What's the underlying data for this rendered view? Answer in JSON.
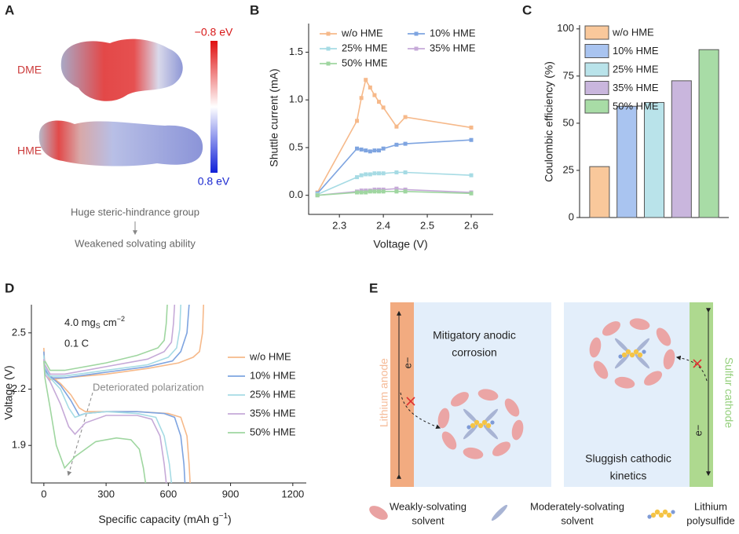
{
  "panel_a": {
    "label": "A",
    "molecules": [
      "DME",
      "HME"
    ],
    "colorbar": [
      "−0.8 eV",
      "0.8 eV"
    ],
    "notes": [
      "Huge steric-hindrance group",
      "Weakened solvating ability"
    ]
  },
  "chart_data": [
    {
      "type": "line",
      "panel": "B",
      "markers": true,
      "legend": "top",
      "xlabel": "Voltage (V)",
      "ylabel": "Shuttle current (mA)",
      "x": [
        2.25,
        2.34,
        2.35,
        2.36,
        2.37,
        2.38,
        2.39,
        2.4,
        2.43,
        2.45,
        2.6
      ],
      "xlim": [
        2.23,
        2.65
      ],
      "xticks": [
        2.3,
        2.4,
        2.5,
        2.6
      ],
      "ylim": [
        -0.2,
        1.8
      ],
      "yticks": [
        {
          "value": 0,
          "label": "0.0"
        },
        0.5,
        {
          "value": 1,
          "label": "1.0"
        },
        1.5
      ],
      "series": [
        {
          "name": "w/o HME",
          "color": "#f6b98a",
          "values": [
            0.03,
            0.78,
            1.02,
            1.21,
            1.13,
            1.05,
            0.98,
            0.92,
            0.72,
            0.82,
            0.71
          ]
        },
        {
          "name": "10% HME",
          "color": "#7ea4e0",
          "values": [
            0.02,
            0.49,
            0.48,
            0.47,
            0.46,
            0.47,
            0.47,
            0.49,
            0.53,
            0.54,
            0.58
          ]
        },
        {
          "name": "25% HME",
          "color": "#a6dbe4",
          "values": [
            0.01,
            0.19,
            0.21,
            0.22,
            0.22,
            0.23,
            0.23,
            0.23,
            0.24,
            0.24,
            0.21
          ]
        },
        {
          "name": "35% HME",
          "color": "#c6aad8",
          "values": [
            0.0,
            0.04,
            0.05,
            0.05,
            0.05,
            0.06,
            0.06,
            0.06,
            0.07,
            0.06,
            0.03
          ]
        },
        {
          "name": "50% HME",
          "color": "#9fd6a0",
          "values": [
            0.0,
            0.03,
            0.03,
            0.03,
            0.04,
            0.04,
            0.04,
            0.04,
            0.04,
            0.04,
            0.02
          ]
        }
      ]
    },
    {
      "type": "bar",
      "panel": "C",
      "ylabel": "Coulombic efficiency  (%)",
      "categories": [
        "w/o HME",
        "10% HME",
        "25% HME",
        "35% HME",
        "50% HME"
      ],
      "values": [
        27,
        59,
        61,
        72.5,
        89
      ],
      "colors": [
        "#f9c89b",
        "#a9c4f0",
        "#b9e3ea",
        "#c9b6dd",
        "#a8dca6"
      ],
      "ylim": [
        0,
        102
      ],
      "yticks": [
        0,
        25,
        50,
        75,
        100
      ]
    },
    {
      "type": "line",
      "panel": "D",
      "markers": false,
      "legend": "right",
      "xlabel_parts": [
        "Specific capacity (mAh g",
        "−1",
        ")"
      ],
      "ylabel": "Voltage (V)",
      "loading_parts": [
        "4.0 mg",
        "S",
        " cm",
        "−2"
      ],
      "rate": "0.1 C",
      "annotation": "Deteriorated polarization",
      "xlim": [
        -60,
        1265
      ],
      "xticks": [
        0,
        300,
        600,
        900,
        1200
      ],
      "ylim": [
        1.7,
        2.65
      ],
      "yticks": [
        1.9,
        2.2,
        2.5
      ],
      "series": [
        {
          "name": "w/o HME",
          "color": "#f6b98a",
          "x": [
            0,
            5,
            30,
            80,
            130,
            170,
            200,
            300,
            450,
            600,
            660,
            690,
            700,
            705,
            null,
            5,
            30,
            100,
            300,
            500,
            650,
            720,
            750,
            765,
            770
          ],
          "values": [
            2.42,
            2.3,
            2.27,
            2.23,
            2.17,
            2.1,
            2.08,
            2.08,
            2.08,
            2.07,
            2.05,
            1.95,
            1.8,
            1.7,
            null,
            2.3,
            2.25,
            2.26,
            2.28,
            2.31,
            2.34,
            2.37,
            2.4,
            2.5,
            2.65
          ]
        },
        {
          "name": "10% HME",
          "color": "#7ea4e0",
          "x": [
            0,
            5,
            30,
            80,
            130,
            170,
            200,
            300,
            450,
            580,
            630,
            660,
            675,
            680,
            null,
            5,
            30,
            100,
            300,
            500,
            620,
            660,
            690,
            700
          ],
          "values": [
            2.4,
            2.3,
            2.27,
            2.22,
            2.14,
            2.06,
            2.07,
            2.08,
            2.08,
            2.07,
            2.05,
            1.95,
            1.8,
            1.7,
            null,
            2.31,
            2.26,
            2.26,
            2.29,
            2.32,
            2.35,
            2.4,
            2.5,
            2.65
          ]
        },
        {
          "name": "25% HME",
          "color": "#a6dbe4",
          "x": [
            0,
            5,
            30,
            80,
            120,
            150,
            200,
            300,
            450,
            540,
            580,
            605,
            615,
            null,
            5,
            30,
            100,
            300,
            500,
            600,
            640,
            655,
            660
          ],
          "values": [
            2.38,
            2.29,
            2.26,
            2.2,
            2.1,
            2.05,
            2.07,
            2.08,
            2.07,
            2.05,
            1.95,
            1.8,
            1.7,
            null,
            2.32,
            2.27,
            2.27,
            2.3,
            2.33,
            2.37,
            2.42,
            2.52,
            2.65
          ]
        },
        {
          "name": "35% HME",
          "color": "#c6aad8",
          "x": [
            0,
            5,
            30,
            80,
            120,
            150,
            200,
            300,
            450,
            520,
            560,
            580,
            590,
            null,
            5,
            30,
            100,
            300,
            500,
            580,
            615,
            625,
            630
          ],
          "values": [
            2.36,
            2.28,
            2.24,
            2.12,
            2.0,
            1.96,
            2.02,
            2.06,
            2.06,
            2.04,
            1.95,
            1.8,
            1.7,
            null,
            2.33,
            2.28,
            2.28,
            2.32,
            2.36,
            2.4,
            2.45,
            2.55,
            2.65
          ]
        },
        {
          "name": "50% HME",
          "color": "#9fd6a0",
          "x": [
            0,
            5,
            30,
            60,
            100,
            150,
            250,
            350,
            420,
            460,
            480,
            490,
            null,
            5,
            30,
            100,
            300,
            450,
            550,
            580,
            590,
            595
          ],
          "values": [
            2.35,
            2.26,
            2.1,
            1.9,
            1.78,
            1.84,
            1.92,
            1.94,
            1.93,
            1.88,
            1.78,
            1.7,
            null,
            2.35,
            2.3,
            2.3,
            2.34,
            2.38,
            2.42,
            2.46,
            2.55,
            2.65
          ]
        }
      ]
    }
  ],
  "panel_e": {
    "label": "E",
    "anode": "Lithium anode",
    "cathode": "Sulfur cathode",
    "electron": "e−",
    "anode_text": [
      "Mitigatory anodic",
      "corrosion"
    ],
    "cathode_text": [
      "Sluggish cathodic",
      "kinetics"
    ],
    "legend": [
      [
        "Weakly-solvating",
        "solvent"
      ],
      [
        "Moderately-solvating",
        "solvent"
      ],
      [
        "Lithium",
        "polysulfide"
      ]
    ]
  }
}
